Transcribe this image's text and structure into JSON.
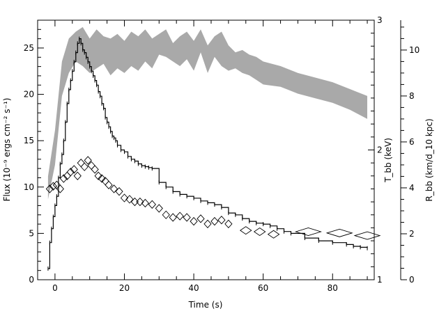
{
  "chart_data": {
    "type": "line",
    "xlabel": "Time (s)",
    "ylabel_left": "Flux (10⁻⁹ ergs cm⁻² s⁻¹)",
    "ylabel_right_inner": "T_bb (keV)",
    "ylabel_right_outer": "R_bb (km/d_10 kpc)",
    "xlim": [
      -5,
      92
    ],
    "ylim_left": [
      0,
      28
    ],
    "ylim_right_inner": [
      1,
      3
    ],
    "ylim_right_outer": [
      0,
      11.3
    ],
    "x_ticks": [
      0,
      20,
      40,
      60,
      80
    ],
    "y_left_ticks": [
      0,
      5,
      10,
      15,
      20,
      25
    ],
    "y_right_inner_ticks": [
      1,
      2,
      3
    ],
    "y_right_outer_ticks": [
      0,
      2,
      4,
      6,
      8,
      10
    ],
    "series": [
      {
        "style": "step-line",
        "x": [
          -2,
          -1.5,
          -1,
          -0.5,
          0,
          0.5,
          1,
          1.5,
          2,
          2.5,
          3,
          3.5,
          4,
          4.5,
          5,
          5.5,
          6,
          6.5,
          7,
          7.5,
          8,
          8.5,
          9,
          9.5,
          10,
          10.5,
          11,
          11.5,
          12,
          12.5,
          13,
          13.5,
          14,
          14.5,
          15,
          15.5,
          16,
          16.5,
          17,
          17.5,
          18,
          19,
          20,
          21,
          22,
          23,
          24,
          25,
          26,
          27,
          28,
          30,
          32,
          34,
          36,
          38,
          40,
          42,
          44,
          46,
          48,
          50,
          52,
          54,
          56,
          58,
          60,
          62,
          64,
          66,
          68,
          72,
          76,
          80,
          84,
          86,
          88,
          90
        ],
        "values": [
          1.2,
          4,
          5.5,
          6.8,
          8,
          9,
          11,
          12.5,
          13.5,
          15,
          17,
          19,
          20.5,
          21.5,
          22.5,
          23.5,
          24.5,
          25.5,
          26,
          25.5,
          24.8,
          24.5,
          24,
          23.5,
          23,
          22.5,
          22,
          21.5,
          21,
          20.3,
          19.8,
          19,
          18.5,
          17.5,
          17,
          16.5,
          16,
          15.5,
          15.3,
          15,
          14.5,
          14,
          13.8,
          13.3,
          13,
          12.8,
          12.5,
          12.3,
          12.2,
          12.1,
          12,
          10.5,
          10,
          9.5,
          9.2,
          9,
          8.8,
          8.5,
          8.3,
          8.1,
          7.8,
          7.2,
          7,
          6.6,
          6.3,
          6.1,
          6,
          5.8,
          5.5,
          5.2,
          5,
          4.5,
          4.2,
          4,
          3.8,
          3.6,
          3.5,
          3.4
        ]
      },
      {
        "style": "diamond-markers",
        "x": [
          -1.5,
          -0.5,
          0.5,
          1.5,
          2.5,
          3.5,
          4.5,
          5.5,
          6.5,
          7.5,
          8.5,
          9.5,
          10.5,
          11.5,
          12.5,
          13.5,
          14.5,
          15.5,
          17,
          18.5,
          20,
          21.5,
          23,
          24.5,
          26,
          28,
          30,
          32,
          34,
          36,
          38,
          40,
          42,
          44,
          46,
          48,
          50,
          55,
          59,
          63,
          73,
          82,
          90
        ],
        "values": [
          1.7,
          1.72,
          1.73,
          1.7,
          1.78,
          1.8,
          1.83,
          1.85,
          1.8,
          1.9,
          1.87,
          1.92,
          1.88,
          1.85,
          1.8,
          1.78,
          1.76,
          1.73,
          1.7,
          1.68,
          1.63,
          1.62,
          1.6,
          1.6,
          1.59,
          1.58,
          1.55,
          1.5,
          1.48,
          1.49,
          1.48,
          1.45,
          1.47,
          1.43,
          1.45,
          1.46,
          1.43,
          1.38,
          1.37,
          1.35,
          1.37,
          1.36,
          1.34
        ]
      },
      {
        "style": "shaded-band",
        "x": [
          -2,
          0,
          2,
          4,
          6,
          8,
          10,
          12,
          14,
          16,
          18,
          20,
          22,
          24,
          26,
          28,
          30,
          32,
          34,
          36,
          38,
          40,
          42,
          44,
          46,
          48,
          50,
          52,
          54,
          56,
          58,
          60,
          65,
          70,
          75,
          80,
          85,
          90
        ],
        "lower": [
          3.5,
          5,
          8,
          9,
          9.5,
          9.3,
          9.0,
          9.2,
          9.4,
          8.9,
          9.2,
          9.0,
          9.3,
          9.1,
          9.5,
          9.2,
          9.8,
          9.7,
          9.5,
          9.3,
          9.6,
          9.1,
          9.9,
          9.0,
          9.7,
          9.3,
          9.1,
          9.2,
          9.0,
          8.9,
          8.7,
          8.5,
          8.4,
          8.1,
          7.9,
          7.7,
          7.4,
          7.0
        ],
        "upper": [
          4.5,
          6.5,
          9.5,
          10.5,
          10.8,
          11.0,
          10.5,
          10.9,
          10.6,
          10.5,
          10.7,
          10.4,
          10.8,
          10.6,
          10.9,
          10.5,
          10.7,
          10.9,
          10.3,
          10.6,
          10.8,
          10.4,
          10.9,
          10.2,
          10.6,
          10.8,
          10.2,
          9.9,
          10.0,
          9.8,
          9.7,
          9.5,
          9.3,
          9.0,
          8.8,
          8.6,
          8.3,
          8.0
        ]
      }
    ],
    "colors": {
      "step_line": "#000000",
      "diamonds": "#000000",
      "band": "#a9a9a9"
    }
  }
}
